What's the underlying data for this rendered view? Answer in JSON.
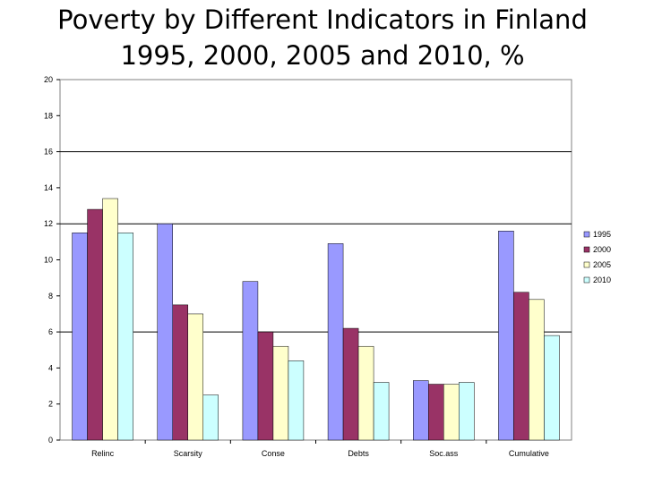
{
  "chart_data": {
    "type": "bar",
    "title_line1": "Poverty by Different Indicators in Finland",
    "title_line2": "1995, 2000, 2005 and 2010, %",
    "categories": [
      "Relinc",
      "Scarsity",
      "Conse",
      "Debts",
      "Soc.ass",
      "Cumulative"
    ],
    "series": [
      {
        "name": "1995",
        "color": "#9999ff",
        "values": [
          11.5,
          12.0,
          8.8,
          10.9,
          3.3,
          11.6
        ]
      },
      {
        "name": "2000",
        "color": "#993366",
        "values": [
          12.8,
          7.5,
          6.0,
          6.2,
          3.1,
          8.2
        ]
      },
      {
        "name": "2005",
        "color": "#ffffcc",
        "values": [
          13.4,
          7.0,
          5.2,
          5.2,
          3.1,
          7.8
        ]
      },
      {
        "name": "2010",
        "color": "#ccffff",
        "values": [
          11.5,
          2.5,
          4.4,
          3.2,
          3.2,
          5.8
        ]
      }
    ],
    "ylim": [
      0,
      20
    ],
    "yticks": [
      "0",
      "2",
      "4",
      "6",
      "8",
      "10",
      "12",
      "14",
      "16",
      "18",
      "20"
    ],
    "gridlines": [
      6,
      12,
      16
    ],
    "xlabel": "",
    "ylabel": "",
    "legend_position": "right"
  }
}
